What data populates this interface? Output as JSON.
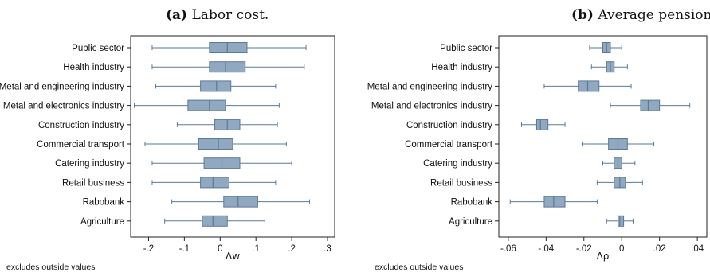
{
  "chart_data": [
    {
      "type": "boxplot",
      "title_tag": "(a)",
      "title": "Labor cost.",
      "xlabel": "Δw",
      "note": "excludes outside values",
      "xlim": [
        -0.25,
        0.32
      ],
      "xticks": [
        -0.2,
        -0.1,
        0,
        0.1,
        0.2,
        0.3
      ],
      "xtick_labels": [
        "-.2",
        "-.1",
        "0",
        ".1",
        ".2",
        ".3"
      ],
      "categories": [
        "Public sector",
        "Health industry",
        "Metal and engineering industry",
        "Metal and electronics industry",
        "Construction industry",
        "Commercial transport",
        "Catering industry",
        "Retail business",
        "Rabobank",
        "Agriculture"
      ],
      "boxes": [
        {
          "whisker_low": -0.19,
          "q1": -0.03,
          "median": 0.02,
          "q3": 0.075,
          "whisker_high": 0.24
        },
        {
          "whisker_low": -0.19,
          "q1": -0.03,
          "median": 0.015,
          "q3": 0.07,
          "whisker_high": 0.235
        },
        {
          "whisker_low": -0.18,
          "q1": -0.055,
          "median": -0.01,
          "q3": 0.03,
          "whisker_high": 0.155
        },
        {
          "whisker_low": -0.24,
          "q1": -0.09,
          "median": -0.03,
          "q3": 0.015,
          "whisker_high": 0.165
        },
        {
          "whisker_low": -0.12,
          "q1": -0.015,
          "median": 0.02,
          "q3": 0.055,
          "whisker_high": 0.16
        },
        {
          "whisker_low": -0.21,
          "q1": -0.06,
          "median": -0.005,
          "q3": 0.035,
          "whisker_high": 0.185
        },
        {
          "whisker_low": -0.19,
          "q1": -0.045,
          "median": 0.005,
          "q3": 0.055,
          "whisker_high": 0.2
        },
        {
          "whisker_low": -0.19,
          "q1": -0.055,
          "median": -0.02,
          "q3": 0.025,
          "whisker_high": 0.155
        },
        {
          "whisker_low": -0.135,
          "q1": 0.01,
          "median": 0.05,
          "q3": 0.105,
          "whisker_high": 0.25
        },
        {
          "whisker_low": -0.155,
          "q1": -0.05,
          "median": -0.02,
          "q3": 0.02,
          "whisker_high": 0.125
        }
      ]
    },
    {
      "type": "boxplot",
      "title_tag": "(b)",
      "title": "Average pension contribution rate.",
      "xlabel": "Δρ",
      "note": "excludes outside values",
      "xlim": [
        -0.065,
        0.045
      ],
      "xticks": [
        -0.06,
        -0.04,
        -0.02,
        0,
        0.02,
        0.04
      ],
      "xtick_labels": [
        "-.06",
        "-.04",
        "-.02",
        "0",
        ".02",
        ".04"
      ],
      "categories": [
        "Public sector",
        "Health industry",
        "Metal and engineering industry",
        "Metal and electronics industry",
        "Construction industry",
        "Commercial transport",
        "Catering industry",
        "Retail business",
        "Rabobank",
        "Agriculture"
      ],
      "boxes": [
        {
          "whisker_low": -0.017,
          "q1": -0.01,
          "median": -0.008,
          "q3": -0.006,
          "whisker_high": 0.0
        },
        {
          "whisker_low": -0.016,
          "q1": -0.008,
          "median": -0.006,
          "q3": -0.004,
          "whisker_high": 0.003
        },
        {
          "whisker_low": -0.041,
          "q1": -0.023,
          "median": -0.018,
          "q3": -0.012,
          "whisker_high": 0.005
        },
        {
          "whisker_low": -0.006,
          "q1": 0.01,
          "median": 0.014,
          "q3": 0.02,
          "whisker_high": 0.036
        },
        {
          "whisker_low": -0.053,
          "q1": -0.045,
          "median": -0.043,
          "q3": -0.039,
          "whisker_high": -0.03
        },
        {
          "whisker_low": -0.021,
          "q1": -0.007,
          "median": -0.002,
          "q3": 0.003,
          "whisker_high": 0.017
        },
        {
          "whisker_low": -0.01,
          "q1": -0.004,
          "median": -0.002,
          "q3": 0.0,
          "whisker_high": 0.007
        },
        {
          "whisker_low": -0.013,
          "q1": -0.004,
          "median": -0.001,
          "q3": 0.002,
          "whisker_high": 0.011
        },
        {
          "whisker_low": -0.059,
          "q1": -0.041,
          "median": -0.036,
          "q3": -0.03,
          "whisker_high": -0.013
        },
        {
          "whisker_low": -0.008,
          "q1": -0.002,
          "median": -0.001,
          "q3": 0.001,
          "whisker_high": 0.006
        }
      ]
    }
  ]
}
